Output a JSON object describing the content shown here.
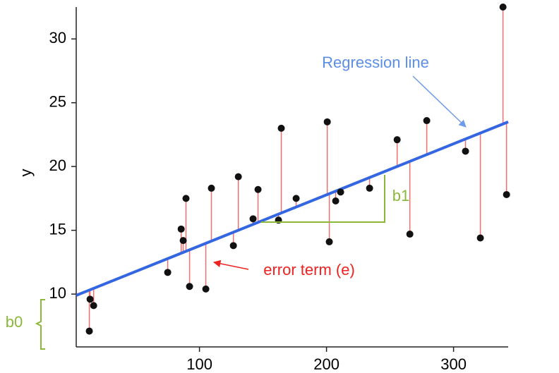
{
  "chart_data": {
    "type": "scatter",
    "ylabel": "y",
    "xlim": [
      3,
      343
    ],
    "ylim": [
      5.86,
      32.5
    ],
    "xticks": [
      100,
      200,
      300
    ],
    "yticks": [
      10,
      15,
      20,
      25,
      30
    ],
    "grid": false,
    "color": "#111111",
    "residual_color": "#f07070",
    "x": [
      13.3,
      13.9,
      16.7,
      75,
      85.6,
      87.2,
      89.4,
      92.2,
      105,
      109.4,
      126.7,
      130.6,
      142.2,
      146.1,
      162.2,
      164.4,
      176.1,
      200.6,
      202.2,
      207.2,
      211.1,
      233.9,
      255.6,
      265.6,
      278.9,
      309.4,
      321.1,
      338.9,
      341.7
    ],
    "values": [
      7.1,
      9.6,
      9.1,
      11.7,
      15.1,
      14.2,
      17.5,
      10.6,
      10.4,
      18.3,
      13.8,
      19.2,
      15.9,
      18.2,
      15.8,
      23.0,
      17.5,
      23.5,
      14.1,
      17.3,
      18.0,
      18.3,
      22.1,
      14.7,
      23.6,
      21.2,
      14.4,
      32.5,
      17.8
    ],
    "regression": {
      "x": [
        3,
        343
      ],
      "values": [
        9.9,
        23.5
      ],
      "color": "#3366e0",
      "label": "Regression line"
    },
    "error_label": "error term (e)",
    "error_color": "#ee2222",
    "slope_label": "b1",
    "intercept_label": "b0",
    "coef_color": "#8cb83a"
  }
}
